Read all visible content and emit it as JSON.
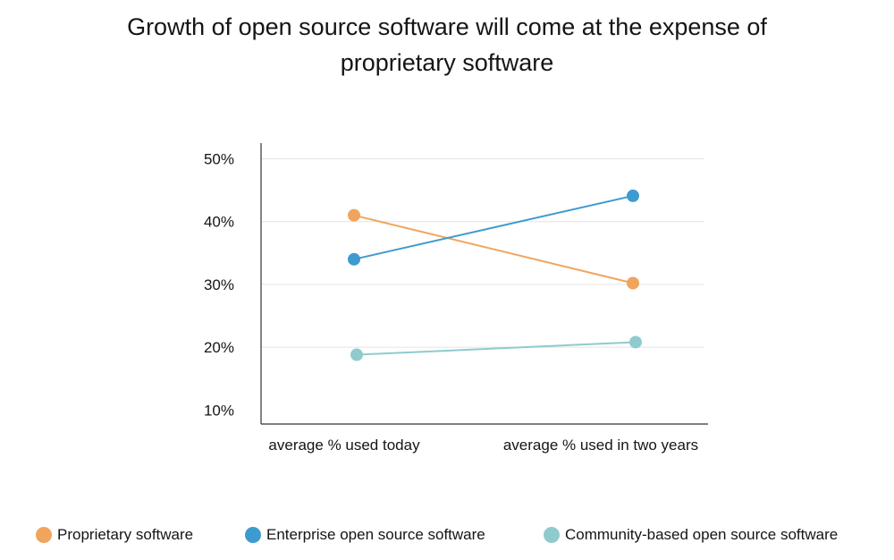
{
  "chart_data": {
    "type": "line",
    "title_line1": "Growth of open source software will come at the expense of",
    "title_line2": "proprietary software",
    "categories": [
      "average % used today",
      "average % used in two years"
    ],
    "yticks": [
      "50%",
      "40%",
      "30%",
      "20%",
      "10%"
    ],
    "ytick_values": [
      50,
      40,
      30,
      20,
      10
    ],
    "ylim": [
      7,
      52
    ],
    "grid": true,
    "legend_position": "bottom",
    "series": [
      {
        "name": "Proprietary software",
        "values": [
          41,
          30.2
        ],
        "color": "#f0a45d"
      },
      {
        "name": "Enterprise open source software",
        "values": [
          34,
          44.1
        ],
        "color": "#3d9bcf"
      },
      {
        "name": "Community-based open source software",
        "values": [
          18.8,
          20.8
        ],
        "color": "#8fcbcd"
      }
    ]
  }
}
